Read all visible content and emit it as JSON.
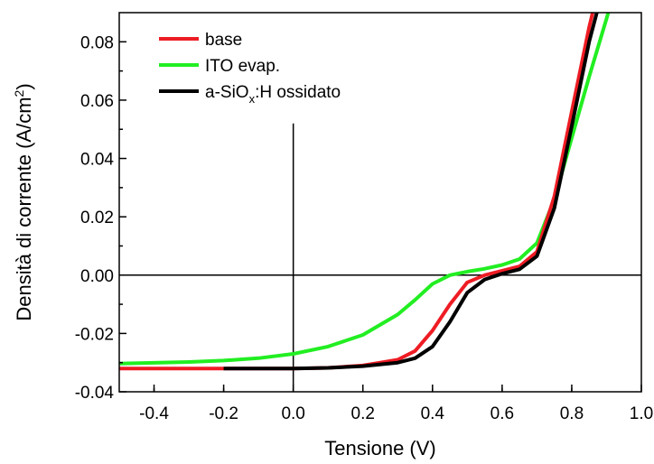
{
  "chart_data": {
    "type": "line",
    "title": "",
    "xlabel": "Tensione (V)",
    "ylabel": {
      "prefix": "Densità di corrente (A/cm",
      "sup": "2",
      "suffix": ")"
    },
    "xlim": [
      -0.5,
      1.0
    ],
    "ylim": [
      -0.04,
      0.09
    ],
    "x_ticks": [
      -0.4,
      -0.2,
      0.0,
      0.2,
      0.4,
      0.6,
      0.8,
      1.0
    ],
    "x_tick_labels": [
      "-0.4",
      "-0.2",
      "0.0",
      "0.2",
      "0.4",
      "0.6",
      "0.8",
      "1.0"
    ],
    "y_ticks": [
      -0.04,
      -0.02,
      0.0,
      0.02,
      0.04,
      0.06,
      0.08
    ],
    "y_tick_labels": [
      "-0.04",
      "-0.02",
      "0.00",
      "0.02",
      "0.04",
      "0.06",
      "0.08"
    ],
    "grid": false,
    "legend_position": "top-left",
    "series": [
      {
        "name": "base",
        "color": "#ee1c24",
        "x": [
          -0.5,
          -0.3,
          -0.1,
          0.0,
          0.1,
          0.2,
          0.25,
          0.3,
          0.35,
          0.4,
          0.45,
          0.5,
          0.55,
          0.6,
          0.65,
          0.7,
          0.75,
          0.8,
          0.85,
          0.86
        ],
        "y": [
          -0.032,
          -0.032,
          -0.032,
          -0.032,
          -0.0318,
          -0.031,
          -0.03,
          -0.029,
          -0.026,
          -0.019,
          -0.01,
          -0.0025,
          0.0,
          0.0015,
          0.003,
          0.008,
          0.027,
          0.056,
          0.085,
          0.09
        ]
      },
      {
        "name": "ITO evap.",
        "color": "#22ee22",
        "x": [
          -0.5,
          -0.3,
          -0.2,
          -0.1,
          0.0,
          0.1,
          0.2,
          0.3,
          0.35,
          0.4,
          0.45,
          0.5,
          0.55,
          0.6,
          0.65,
          0.7,
          0.75,
          0.8,
          0.85,
          0.9,
          0.905
        ],
        "y": [
          -0.0303,
          -0.0298,
          -0.0293,
          -0.0285,
          -0.027,
          -0.0245,
          -0.0205,
          -0.0135,
          -0.0085,
          -0.003,
          0.0,
          0.0012,
          0.0022,
          0.0035,
          0.0055,
          0.011,
          0.026,
          0.047,
          0.068,
          0.088,
          0.09
        ]
      },
      {
        "name": "a-SiO_x:H ossidato",
        "label_parts": [
          "a-SiO",
          "x",
          ":H ossidato"
        ],
        "color": "#000000",
        "x": [
          -0.2,
          -0.1,
          0.0,
          0.1,
          0.2,
          0.3,
          0.35,
          0.4,
          0.45,
          0.5,
          0.55,
          0.6,
          0.65,
          0.7,
          0.75,
          0.8,
          0.85,
          0.872
        ],
        "y": [
          -0.032,
          -0.032,
          -0.032,
          -0.0318,
          -0.0312,
          -0.03,
          -0.0285,
          -0.0245,
          -0.016,
          -0.006,
          -0.0015,
          0.0005,
          0.002,
          0.0065,
          0.023,
          0.051,
          0.08,
          0.09
        ]
      }
    ]
  }
}
